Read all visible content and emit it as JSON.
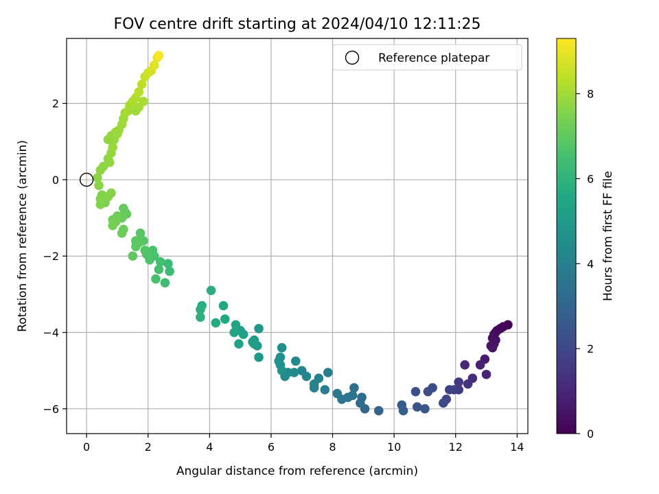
{
  "chart_data": {
    "type": "scatter",
    "title": "FOV centre drift starting at 2024/04/10 12:11:25",
    "xlabel": "Angular distance from reference (arcmin)",
    "ylabel": "Rotation from reference (arcmin)",
    "xlim": [
      -0.65,
      14.35
    ],
    "ylim": [
      -6.65,
      3.7
    ],
    "xticks": [
      0,
      2,
      4,
      6,
      8,
      10,
      12,
      14
    ],
    "yticks": [
      -6,
      -4,
      -2,
      0,
      2
    ],
    "grid": true,
    "legend": {
      "placement": "top-right",
      "entries": [
        "Reference platepar"
      ]
    },
    "reference_point": {
      "x": 0,
      "y": 0,
      "label": "Reference platepar"
    },
    "colorbar": {
      "label": "Hours from first FF file",
      "colormap": "viridis",
      "range": [
        0,
        9.3
      ],
      "ticks": [
        0,
        2,
        4,
        6,
        8
      ]
    },
    "series": [
      {
        "points": [
          [
            13.7,
            -3.8,
            0.05
          ],
          [
            13.55,
            -3.85,
            0.1
          ],
          [
            13.45,
            -3.9,
            0.15
          ],
          [
            13.35,
            -3.95,
            0.2
          ],
          [
            13.3,
            -4.0,
            0.25
          ],
          [
            13.25,
            -4.05,
            0.3
          ],
          [
            13.3,
            -4.2,
            0.35
          ],
          [
            13.2,
            -4.15,
            0.4
          ],
          [
            13.25,
            -4.3,
            0.45
          ],
          [
            13.2,
            -4.4,
            0.5
          ],
          [
            13.15,
            -4.35,
            0.55
          ],
          [
            12.95,
            -4.7,
            0.7
          ],
          [
            12.8,
            -4.85,
            0.85
          ],
          [
            13.0,
            -5.1,
            1.0
          ],
          [
            12.3,
            -4.85,
            1.1
          ],
          [
            12.55,
            -5.2,
            1.2
          ],
          [
            12.4,
            -5.35,
            1.35
          ],
          [
            12.1,
            -5.3,
            1.5
          ],
          [
            12.1,
            -5.5,
            1.6
          ],
          [
            11.95,
            -5.5,
            1.7
          ],
          [
            11.8,
            -5.5,
            1.8
          ],
          [
            11.7,
            -5.75,
            1.9
          ],
          [
            11.6,
            -5.85,
            2.0
          ],
          [
            11.25,
            -5.45,
            2.1
          ],
          [
            11.1,
            -5.55,
            2.2
          ],
          [
            10.7,
            -5.55,
            2.3
          ],
          [
            10.75,
            -5.95,
            2.4
          ],
          [
            11.0,
            -6.0,
            2.5
          ],
          [
            10.25,
            -5.9,
            2.7
          ],
          [
            10.3,
            -6.05,
            2.8
          ],
          [
            9.5,
            -6.05,
            3.0
          ],
          [
            9.05,
            -6.0,
            3.15
          ],
          [
            8.9,
            -5.85,
            3.25
          ],
          [
            8.95,
            -5.7,
            3.3
          ],
          [
            8.7,
            -5.45,
            3.4
          ],
          [
            8.65,
            -5.65,
            3.5
          ],
          [
            8.5,
            -5.7,
            3.55
          ],
          [
            8.3,
            -5.75,
            3.6
          ],
          [
            8.15,
            -5.6,
            3.7
          ],
          [
            7.85,
            -5.05,
            3.85
          ],
          [
            7.75,
            -5.5,
            3.9
          ],
          [
            7.55,
            -5.2,
            4.0
          ],
          [
            7.4,
            -5.45,
            4.05
          ],
          [
            7.4,
            -5.35,
            4.1
          ],
          [
            7.0,
            -5.0,
            4.2
          ],
          [
            7.15,
            -5.15,
            4.25
          ],
          [
            6.8,
            -4.75,
            4.35
          ],
          [
            6.75,
            -5.05,
            4.4
          ],
          [
            6.55,
            -5.05,
            4.45
          ],
          [
            6.45,
            -5.15,
            4.5
          ],
          [
            6.35,
            -4.4,
            4.55
          ],
          [
            6.3,
            -4.65,
            4.6
          ],
          [
            6.3,
            -4.85,
            4.65
          ],
          [
            6.25,
            -4.75,
            4.7
          ],
          [
            6.35,
            -5.0,
            4.75
          ],
          [
            5.6,
            -3.9,
            4.9
          ],
          [
            5.6,
            -4.65,
            4.95
          ],
          [
            5.55,
            -4.35,
            5.0
          ],
          [
            5.45,
            -4.2,
            5.05
          ],
          [
            5.4,
            -4.25,
            5.1
          ],
          [
            5.45,
            -4.3,
            5.15
          ],
          [
            5.1,
            -4.05,
            5.25
          ],
          [
            5.0,
            -3.95,
            5.3
          ],
          [
            4.95,
            -4.3,
            5.35
          ],
          [
            4.85,
            -3.8,
            5.4
          ],
          [
            4.8,
            -4.0,
            5.45
          ],
          [
            4.45,
            -3.3,
            5.55
          ],
          [
            4.5,
            -3.65,
            5.6
          ],
          [
            4.2,
            -3.75,
            5.65
          ],
          [
            4.05,
            -2.9,
            5.75
          ],
          [
            3.75,
            -3.3,
            5.8
          ],
          [
            3.7,
            -3.4,
            5.85
          ],
          [
            3.7,
            -3.6,
            5.9
          ],
          [
            2.65,
            -2.2,
            6.3
          ],
          [
            2.7,
            -2.4,
            6.35
          ],
          [
            2.55,
            -2.7,
            6.4
          ],
          [
            2.4,
            -2.15,
            6.45
          ],
          [
            2.35,
            -2.35,
            6.5
          ],
          [
            2.25,
            -2.6,
            6.55
          ],
          [
            2.2,
            -2.0,
            6.6
          ],
          [
            2.15,
            -1.85,
            6.6
          ],
          [
            2.05,
            -2.1,
            6.65
          ],
          [
            1.95,
            -1.95,
            6.7
          ],
          [
            1.9,
            -1.85,
            6.75
          ],
          [
            1.85,
            -1.6,
            6.8
          ],
          [
            1.75,
            -1.4,
            6.85
          ],
          [
            1.7,
            -1.65,
            6.9
          ],
          [
            1.6,
            -1.6,
            6.9
          ],
          [
            1.6,
            -1.75,
            6.95
          ],
          [
            1.5,
            -2.0,
            7.0
          ],
          [
            1.3,
            -0.9,
            7.05
          ],
          [
            1.25,
            -0.85,
            7.1
          ],
          [
            1.2,
            -0.75,
            7.1
          ],
          [
            1.15,
            -1.0,
            7.15
          ],
          [
            1.2,
            -1.3,
            7.2
          ],
          [
            1.15,
            -1.4,
            7.2
          ],
          [
            1.0,
            -0.95,
            7.25
          ],
          [
            0.95,
            -1.1,
            7.3
          ],
          [
            0.85,
            -1.05,
            7.3
          ],
          [
            0.85,
            -1.2,
            7.35
          ],
          [
            0.65,
            -0.45,
            7.4
          ],
          [
            0.6,
            -0.6,
            7.45
          ],
          [
            0.55,
            -0.45,
            7.45
          ],
          [
            0.5,
            -0.4,
            7.5
          ],
          [
            0.45,
            -0.65,
            7.55
          ],
          [
            0.45,
            -0.5,
            7.55
          ],
          [
            0.7,
            -0.45,
            7.6
          ],
          [
            0.8,
            -0.35,
            7.6
          ],
          [
            0.4,
            -0.15,
            7.65
          ],
          [
            0.35,
            0.05,
            7.65
          ],
          [
            0.45,
            0.25,
            7.7
          ],
          [
            0.55,
            0.35,
            7.7
          ],
          [
            0.7,
            0.55,
            7.75
          ],
          [
            0.75,
            0.45,
            7.8
          ],
          [
            0.8,
            0.7,
            7.8
          ],
          [
            0.85,
            0.85,
            7.85
          ],
          [
            0.9,
            1.05,
            7.85
          ],
          [
            0.95,
            1.25,
            7.9
          ],
          [
            1.05,
            1.3,
            7.9
          ],
          [
            1.15,
            1.45,
            7.95
          ],
          [
            1.2,
            1.6,
            7.95
          ],
          [
            1.25,
            1.75,
            8.0
          ],
          [
            1.35,
            1.8,
            8.05
          ],
          [
            1.4,
            1.95,
            8.1
          ],
          [
            1.5,
            2.05,
            8.15
          ],
          [
            1.6,
            2.15,
            8.2
          ],
          [
            1.7,
            2.3,
            8.3
          ],
          [
            1.8,
            2.5,
            8.4
          ],
          [
            1.9,
            2.7,
            8.5
          ],
          [
            2.0,
            2.8,
            8.6
          ],
          [
            2.1,
            2.85,
            8.7
          ],
          [
            2.2,
            3.0,
            8.85
          ],
          [
            2.3,
            3.2,
            9.0
          ],
          [
            2.35,
            3.25,
            9.2
          ],
          [
            1.85,
            2.05,
            8.1
          ],
          [
            1.7,
            1.9,
            8.05
          ],
          [
            1.6,
            1.8,
            7.95
          ],
          [
            0.7,
            1.05,
            7.75
          ],
          [
            0.8,
            1.15,
            7.8
          ],
          [
            1.0,
            1.2,
            7.9
          ]
        ]
      }
    ]
  }
}
